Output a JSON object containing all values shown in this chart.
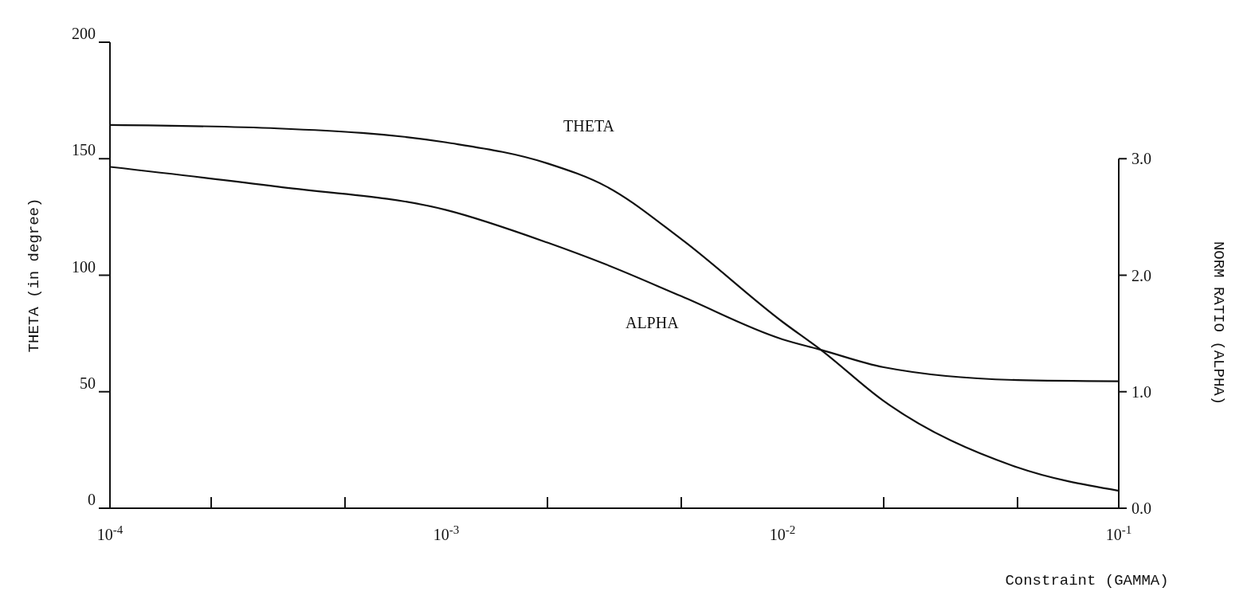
{
  "chart_data": {
    "type": "line",
    "xlabel": "Constraint (GAMMA)",
    "ylabel": "THETA (in degree)",
    "y2label": "NORM RATIO (ALPHA)",
    "log": "x",
    "grid": false,
    "legend": false,
    "marker": "none",
    "line_style": "solid",
    "xlim": [
      0.0001,
      0.1
    ],
    "xticks": [
      {
        "value": 0.0001,
        "label": "10$^{-4}$"
      },
      {
        "value": 0.0002,
        "label": null
      },
      {
        "value": 0.0005,
        "label": null
      },
      {
        "value": 0.001,
        "label": "10$^{-3}$"
      },
      {
        "value": 0.002,
        "label": null
      },
      {
        "value": 0.005,
        "label": null
      },
      {
        "value": 0.01,
        "label": "10$^{-2}$"
      },
      {
        "value": 0.02,
        "label": null
      },
      {
        "value": 0.05,
        "label": null
      },
      {
        "value": 0.1,
        "label": "10$^{-1}$"
      }
    ],
    "ylim": [
      0,
      200
    ],
    "yticks": [
      0,
      50,
      100,
      150,
      200
    ],
    "y2lim": [
      0,
      4
    ],
    "y2ticks": [
      {
        "value": 0,
        "label": "0.0"
      },
      {
        "value": 1,
        "label": "1.0"
      },
      {
        "value": 2,
        "label": "2.0"
      },
      {
        "value": 3,
        "label": "3.0"
      }
    ],
    "series": [
      {
        "name": "THETA",
        "color": "#111111",
        "x": [
          0.0001,
          0.000316,
          0.001,
          0.002,
          0.003,
          0.005,
          0.01,
          0.013,
          0.02,
          0.05,
          0.1
        ],
        "values": [
          164.5,
          163,
          157,
          148,
          138,
          115.5,
          80,
          68,
          46,
          17.5,
          7.5
        ]
      },
      {
        "name": "ALPHA",
        "color": "#111111",
        "axis": "y2",
        "x": [
          0.0001,
          0.000316,
          0.001,
          0.002,
          0.003,
          0.005,
          0.01,
          0.013,
          0.02,
          0.05,
          0.1
        ],
        "values": [
          2.93,
          2.76,
          2.56,
          2.28,
          2.09,
          1.82,
          1.45,
          1.36,
          1.21,
          1.1,
          1.09
        ]
      }
    ]
  }
}
